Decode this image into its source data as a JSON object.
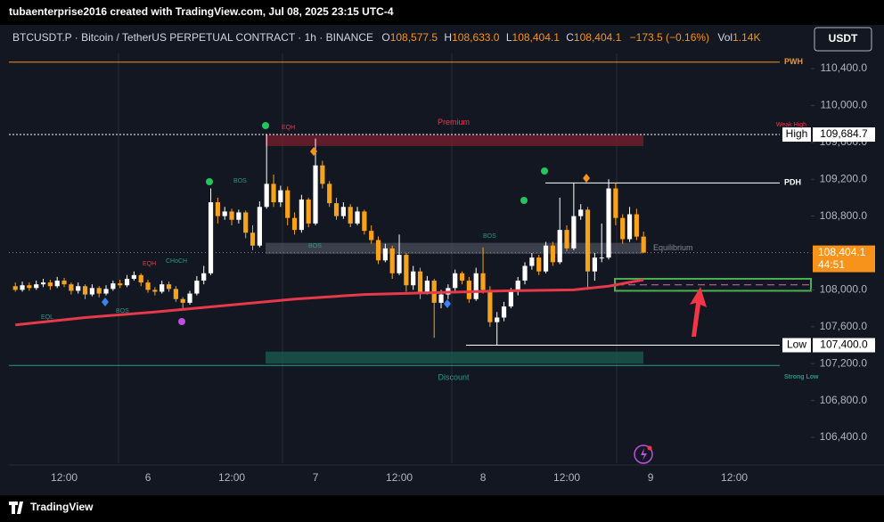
{
  "header": {
    "attribution": "tubaenterprise2016 created with TradingView.com, Jul 08, 2025 23:15 UTC-4",
    "symbol": "BTCUSDT.P · Bitcoin / TetherUS PERPETUAL CONTRACT · 1h · BINANCE",
    "ohlc": [
      {
        "label": "O",
        "value": "108,577.5"
      },
      {
        "label": "H",
        "value": "108,633.0"
      },
      {
        "label": "L",
        "value": "108,404.1"
      },
      {
        "label": "C",
        "value": "108,404.1"
      }
    ],
    "change": "−173.5 (−0.16%)",
    "volume_label": "Vol",
    "volume": "1.14K",
    "currency": "USDT"
  },
  "chart_data": {
    "type": "candlestick",
    "categories": [
      null,
      null,
      null,
      null,
      null,
      null,
      null,
      "12:00",
      null,
      null,
      null,
      null,
      null,
      null,
      null,
      null,
      null,
      null,
      null,
      "6",
      null,
      null,
      null,
      null,
      null,
      null,
      null,
      null,
      null,
      null,
      null,
      "12:00",
      null,
      null,
      null,
      null,
      null,
      null,
      null,
      null,
      null,
      null,
      null,
      "7",
      null,
      null,
      null,
      null,
      null,
      null,
      null,
      null,
      null,
      null,
      null,
      "12:00",
      null,
      null,
      null,
      null,
      null,
      null,
      null,
      null,
      null,
      null,
      null,
      "8",
      null,
      null,
      null,
      null,
      null,
      null,
      null,
      null,
      null,
      null,
      null,
      "12:00",
      null,
      null,
      null,
      null,
      null,
      null,
      null,
      null,
      null,
      null,
      null,
      "9",
      null,
      null,
      null,
      null,
      null,
      null,
      null,
      null,
      null,
      null,
      null,
      "12:00",
      null
    ],
    "candles": [
      [
        108040,
        108080,
        107980,
        108000
      ],
      [
        108000,
        108090,
        107980,
        108050
      ],
      [
        108050,
        108080,
        107990,
        108020
      ],
      [
        108020,
        108100,
        108000,
        108060
      ],
      [
        108060,
        108120,
        108030,
        108080
      ],
      [
        108080,
        108110,
        108000,
        108040
      ],
      [
        108040,
        108140,
        108020,
        108100
      ],
      [
        108100,
        108130,
        108030,
        108060
      ],
      [
        108060,
        108080,
        107950,
        107990
      ],
      [
        107990,
        108080,
        107960,
        108040
      ],
      [
        108040,
        108060,
        107900,
        107950
      ],
      [
        107950,
        108060,
        107930,
        108020
      ],
      [
        108020,
        108040,
        107920,
        107960
      ],
      [
        107960,
        108050,
        107940,
        108010
      ],
      [
        108010,
        108100,
        107990,
        108070
      ],
      [
        108070,
        108110,
        108020,
        108050
      ],
      [
        108050,
        108160,
        108030,
        108120
      ],
      [
        108120,
        108200,
        108100,
        108160
      ],
      [
        108160,
        108180,
        108040,
        108080
      ],
      [
        108080,
        108110,
        107970,
        108000
      ],
      [
        108000,
        108030,
        107940,
        107980
      ],
      [
        107980,
        108100,
        107960,
        108060
      ],
      [
        108060,
        108090,
        107980,
        108010
      ],
      [
        108010,
        108040,
        107870,
        107900
      ],
      [
        107900,
        107920,
        107780,
        107860
      ],
      [
        107860,
        107990,
        107840,
        107960
      ],
      [
        107960,
        108150,
        107940,
        108100
      ],
      [
        108100,
        108260,
        108060,
        108180
      ],
      [
        108180,
        109100,
        108160,
        108950
      ],
      [
        108950,
        109000,
        108720,
        108800
      ],
      [
        108800,
        108900,
        108760,
        108850
      ],
      [
        108850,
        108880,
        108700,
        108760
      ],
      [
        108760,
        108870,
        108720,
        108840
      ],
      [
        108840,
        108860,
        108560,
        108620
      ],
      [
        108620,
        108700,
        108430,
        108480
      ],
      [
        108480,
        108960,
        108460,
        108900
      ],
      [
        108900,
        109685,
        108880,
        109150
      ],
      [
        109150,
        109250,
        108900,
        108950
      ],
      [
        108950,
        109130,
        108900,
        109080
      ],
      [
        109080,
        109120,
        108700,
        108780
      ],
      [
        108780,
        108840,
        108600,
        108650
      ],
      [
        108650,
        109030,
        108620,
        108980
      ],
      [
        108980,
        109000,
        108680,
        108720
      ],
      [
        108720,
        109640,
        108700,
        109350
      ],
      [
        109350,
        109400,
        109100,
        109150
      ],
      [
        109150,
        109180,
        108900,
        108940
      ],
      [
        108940,
        109000,
        108760,
        108800
      ],
      [
        108800,
        108950,
        108770,
        108900
      ],
      [
        108900,
        108930,
        108680,
        108720
      ],
      [
        108720,
        108900,
        108700,
        108850
      ],
      [
        108850,
        108870,
        108600,
        108640
      ],
      [
        108640,
        108700,
        108500,
        108540
      ],
      [
        108540,
        108580,
        108280,
        108320
      ],
      [
        108320,
        108500,
        108300,
        108450
      ],
      [
        108450,
        108480,
        108120,
        108180
      ],
      [
        108180,
        108600,
        108160,
        108380
      ],
      [
        108380,
        108400,
        107980,
        108050
      ],
      [
        108050,
        108260,
        108000,
        108200
      ],
      [
        108200,
        108240,
        107900,
        107980
      ],
      [
        107980,
        108150,
        107950,
        108100
      ],
      [
        108100,
        108120,
        107480,
        107860
      ],
      [
        107860,
        108000,
        107800,
        107950
      ],
      [
        107950,
        108060,
        107900,
        108020
      ],
      [
        108020,
        108220,
        107990,
        108180
      ],
      [
        108180,
        108200,
        108060,
        108100
      ],
      [
        108100,
        108140,
        107860,
        107900
      ],
      [
        107900,
        108240,
        107880,
        108180
      ],
      [
        108180,
        108460,
        107960,
        108000
      ],
      [
        108000,
        108040,
        107600,
        107650
      ],
      [
        107650,
        107760,
        107400,
        107700
      ],
      [
        107700,
        107870,
        107660,
        107820
      ],
      [
        107820,
        108020,
        107800,
        107980
      ],
      [
        107980,
        108140,
        107940,
        108100
      ],
      [
        108100,
        108300,
        108060,
        108260
      ],
      [
        108260,
        108400,
        108220,
        108350
      ],
      [
        108350,
        108380,
        108160,
        108200
      ],
      [
        108200,
        108520,
        108180,
        108480
      ],
      [
        108480,
        108520,
        108260,
        108300
      ],
      [
        108300,
        109000,
        108280,
        108650
      ],
      [
        108650,
        108700,
        108420,
        108450
      ],
      [
        108450,
        109160,
        108430,
        108800
      ],
      [
        108800,
        108930,
        108760,
        108870
      ],
      [
        108870,
        108900,
        108000,
        108200
      ],
      [
        108200,
        108400,
        108100,
        108350
      ],
      [
        108350,
        108720,
        108300,
        108350
      ],
      [
        108350,
        109200,
        108330,
        109100
      ],
      [
        109100,
        109160,
        108700,
        108780
      ],
      [
        108780,
        108820,
        108500,
        108550
      ],
      [
        108550,
        108900,
        108520,
        108820
      ],
      [
        108820,
        108880,
        108540,
        108577.5
      ],
      [
        108577.5,
        108633,
        108404.1,
        108404.1
      ],
      null,
      null,
      null,
      null,
      null,
      null,
      null,
      null,
      null,
      null,
      null,
      null,
      null,
      null
    ],
    "up_color": "#ffffff",
    "down_color": "#f7a21b",
    "ylim": [
      106120,
      110854
    ],
    "yticks": [
      {
        "value": 110400,
        "label": "110,400.0"
      },
      {
        "value": 110000,
        "label": "110,000.0"
      },
      {
        "value": 109600,
        "label": "109,600.0"
      },
      {
        "value": 109200,
        "label": "109,200.0"
      },
      {
        "value": 108800,
        "label": "108,800.0"
      },
      {
        "value": 108400,
        "label": "108,400.0"
      },
      {
        "value": 108000,
        "label": "108,000.0"
      },
      {
        "value": 107600,
        "label": "107,600.0"
      },
      {
        "value": 107200,
        "label": "107,200.0"
      },
      {
        "value": 106800,
        "label": "106,800.0"
      },
      {
        "value": 106400,
        "label": "106,400.0"
      }
    ],
    "moving_average": {
      "color": "#e8394a",
      "x": [
        0,
        10,
        20,
        30,
        40,
        50,
        60,
        70,
        80,
        85,
        90
      ],
      "values": [
        107620,
        107700,
        107760,
        107830,
        107900,
        107950,
        107970,
        107990,
        108000,
        108040,
        108110
      ]
    },
    "levels": [
      {
        "name": "PWH",
        "value": 110470,
        "color": "#f7931a"
      },
      {
        "name": "High",
        "value": 109684.7,
        "label": "109,684.7",
        "note": "Weak High",
        "color": "#ffffff"
      },
      {
        "name": "PDH",
        "value": 109160,
        "color": "#ffffff"
      },
      {
        "name": "Low",
        "value": 107400,
        "label": "107,400.0",
        "color": "#ffffff"
      },
      {
        "name": "Strong Low",
        "value": 107180,
        "color": "#1f9e89"
      }
    ],
    "zones": [
      {
        "name": "Premium",
        "from": 109560,
        "to": 109680,
        "color": "#7a1f2e"
      },
      {
        "name": "Equilibrium",
        "from": 108390,
        "to": 108510,
        "color": "#4a4e5a"
      },
      {
        "name": "Discount",
        "from": 107200,
        "to": 107330,
        "color": "#1b5e4f"
      }
    ],
    "order_block": {
      "from": 107990,
      "to": 108120,
      "color": "#4caf50"
    },
    "last_price": {
      "value": 108404.1,
      "label": "108,404.1",
      "countdown": "44:51",
      "color": "#f7931a"
    },
    "annotations": [
      "EQL",
      "BOS",
      "EQH",
      "CHoCH",
      "BOS",
      "EQH",
      "BOS",
      "BOS"
    ]
  },
  "footer": {
    "brand": "TradingView"
  }
}
